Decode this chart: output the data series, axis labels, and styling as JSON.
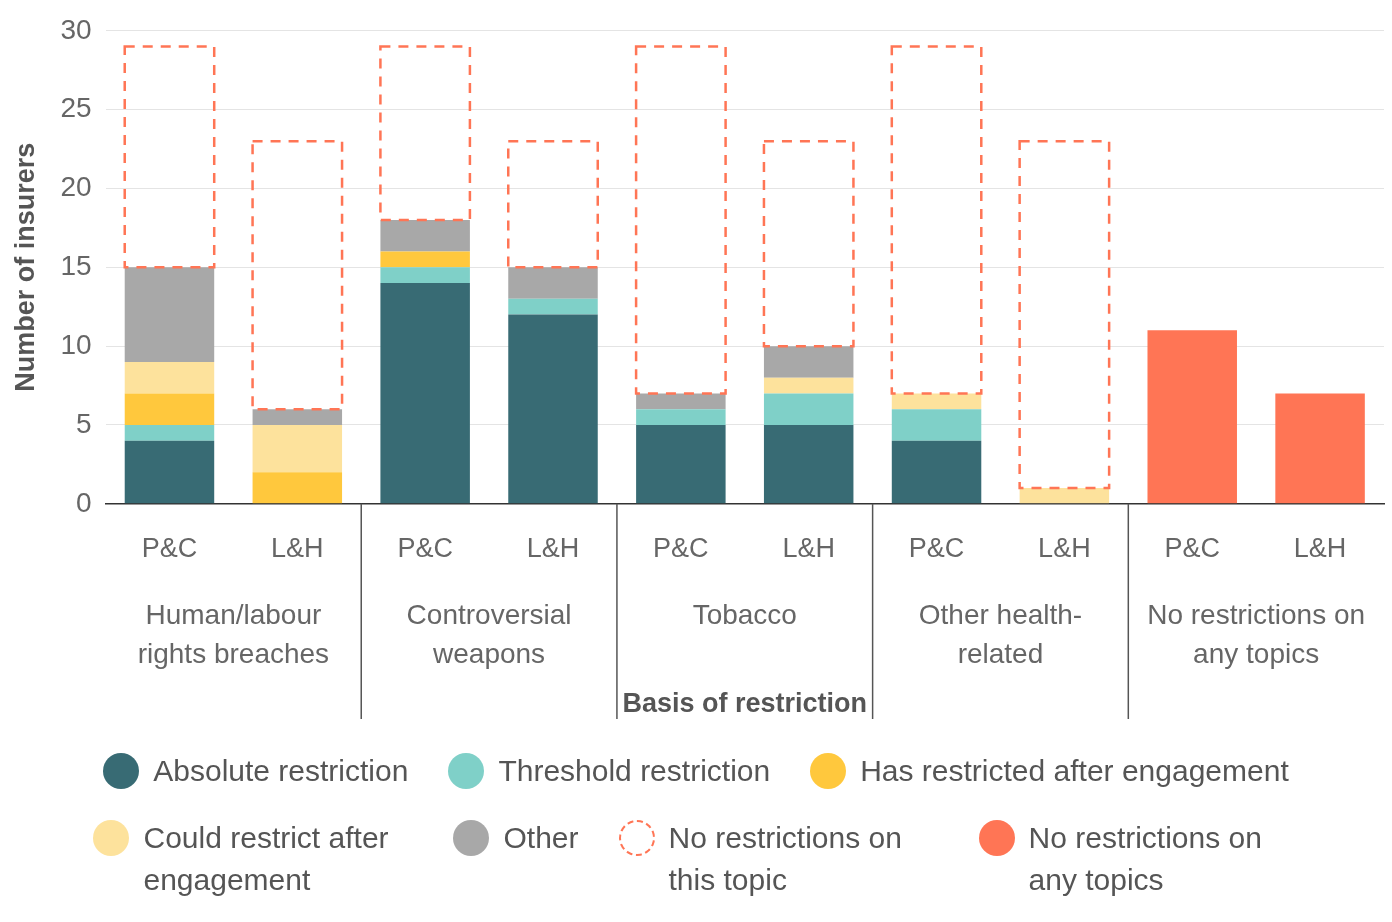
{
  "chart_data": {
    "type": "bar",
    "stacked": true,
    "xlabel": "Basis of restriction",
    "ylabel": "Number of insurers",
    "categories": [
      "P&C",
      "L&H",
      "P&C",
      "L&H",
      "P&C",
      "L&H",
      "P&C",
      "L&H",
      "P&C",
      "L&H"
    ],
    "annotations": [
      "Human/labour rights breaches",
      "Controversial weapons",
      "Tobacco",
      "Other health-related",
      "No restrictions on any topics"
    ],
    "series": [
      {
        "name": "Absolute restriction",
        "color": "#386b74",
        "values": [
          4,
          0,
          14,
          12,
          5,
          5,
          4,
          0,
          0,
          0
        ]
      },
      {
        "name": "Threshold restriction",
        "color": "#7fd0c8",
        "values": [
          1,
          0,
          1,
          1,
          1,
          2,
          2,
          0,
          0,
          0
        ]
      },
      {
        "name": "Has restricted after engagement",
        "color": "#ffc83d",
        "values": [
          2,
          2,
          1,
          0,
          0,
          0,
          0,
          0,
          0,
          0
        ]
      },
      {
        "name": "Could restrict after engagement",
        "color": "#fde29c",
        "values": [
          2,
          3,
          0,
          0,
          0,
          1,
          1,
          1,
          0,
          0
        ]
      },
      {
        "name": "Other",
        "color": "#a8a8a8",
        "values": [
          6,
          1,
          2,
          2,
          1,
          2,
          0,
          0,
          0,
          0
        ]
      },
      {
        "name": "No restrictions on this topic",
        "color": "#ff7555",
        "line_style": "dashed",
        "values": [
          14,
          17,
          11,
          8,
          22,
          13,
          22,
          22,
          0,
          0
        ]
      },
      {
        "name": "No restrictions on any topics",
        "color": "#ff7555",
        "values": [
          0,
          0,
          0,
          0,
          0,
          0,
          0,
          0,
          11,
          7
        ]
      }
    ],
    "ylim": [
      0,
      30
    ],
    "yticks": [
      0,
      5,
      10,
      15,
      20,
      25,
      30
    ],
    "grid": "y",
    "legend": "bottom"
  }
}
